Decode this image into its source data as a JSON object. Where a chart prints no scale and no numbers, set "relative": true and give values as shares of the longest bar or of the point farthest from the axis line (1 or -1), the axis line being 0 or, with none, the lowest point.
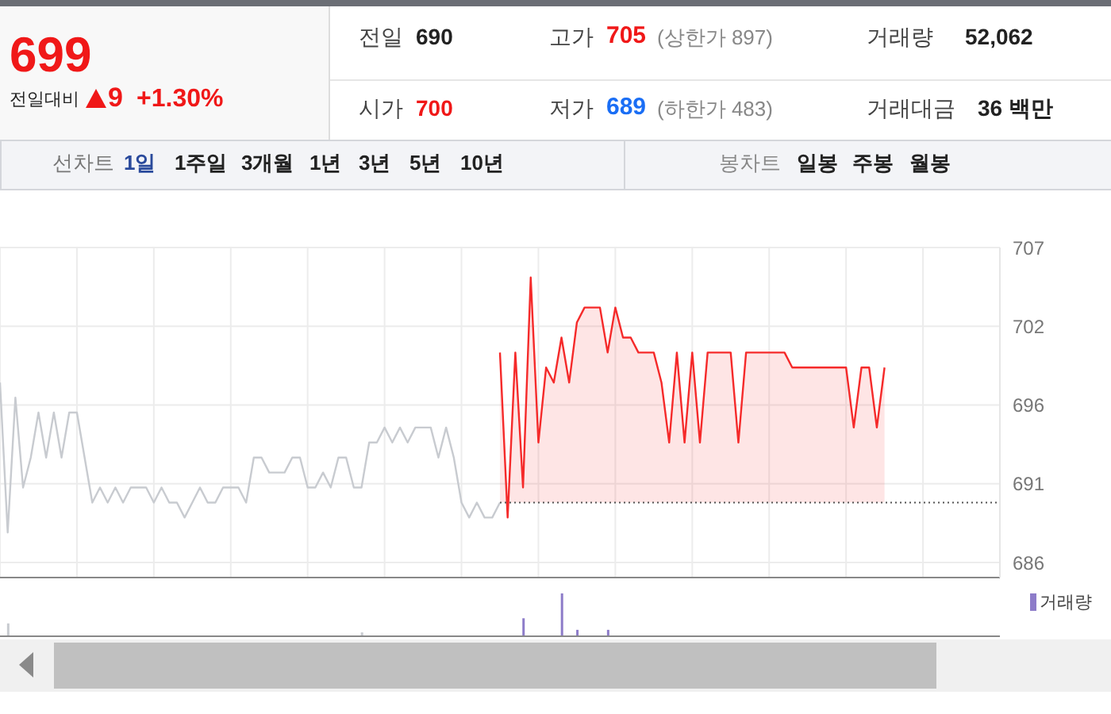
{
  "chart_data": [
    {
      "type": "other",
      "annotations": [
        "699",
        "전일대비",
        "9",
        "+1.30%",
        "전일",
        "690",
        "고가",
        "705",
        "(상한가 897)",
        "거래량",
        "52,062",
        "시가",
        "700",
        "저가",
        "689",
        "(하한가 483)",
        "거래대금",
        "36 백만",
        "선차트",
        "1일",
        "1주일",
        "3개월",
        "1년",
        "3년",
        "5년",
        "10년",
        "봉차트",
        "일봉",
        "주봉",
        "월봉"
      ]
    },
    {
      "type": "line",
      "categories": [
        null,
        null,
        null,
        null,
        null,
        null,
        null,
        null,
        null,
        null,
        null,
        null,
        null,
        null,
        null,
        null,
        null,
        null,
        null,
        null,
        null,
        null,
        null,
        null,
        null,
        null,
        null,
        null,
        null,
        null,
        null,
        null,
        null,
        null,
        null,
        null,
        null,
        null,
        null,
        null,
        null,
        null,
        null,
        null,
        null,
        null,
        null,
        null,
        null,
        null,
        null,
        null,
        null,
        null,
        null,
        null,
        null,
        null,
        null,
        null,
        null,
        null,
        null,
        null,
        null,
        null,
        null,
        null,
        null,
        null,
        null,
        null,
        null,
        null,
        null,
        null,
        null,
        null,
        null,
        null,
        null,
        null,
        null,
        null,
        null,
        null,
        null,
        null,
        null,
        null,
        null,
        null,
        null,
        null,
        null,
        null,
        null,
        null,
        null,
        null,
        null,
        null,
        null,
        null,
        null,
        null,
        null,
        null,
        null,
        null,
        null,
        null,
        null,
        null,
        null,
        null,
        null,
        null,
        null,
        null,
        null,
        null,
        null,
        null,
        null,
        null,
        null,
        null,
        null,
        null,
        null
      ],
      "series": [
        {
          "type": "line",
          "color": "#c8cbd0",
          "values": [
            698,
            688,
            697,
            691,
            693,
            696,
            693,
            696,
            693,
            696,
            696,
            693,
            690,
            691,
            690,
            691,
            690,
            691,
            691,
            691,
            690,
            691,
            690,
            690,
            689,
            690,
            691,
            690,
            690,
            691,
            691,
            691,
            690,
            693,
            693,
            692,
            692,
            692,
            693,
            693,
            691,
            691,
            692,
            691,
            693,
            693,
            691,
            691,
            694,
            694,
            695,
            694,
            695,
            694,
            695,
            695,
            695,
            693,
            695,
            693,
            690,
            689,
            690,
            689,
            689,
            690,
            null,
            null,
            null,
            null,
            null,
            null,
            null,
            null,
            null,
            null,
            null,
            null,
            null,
            null,
            null,
            null,
            null,
            null,
            null,
            null,
            null,
            null,
            null,
            null,
            null,
            null,
            null,
            null,
            null,
            null,
            null,
            null,
            null,
            null,
            null,
            null,
            null,
            null,
            null,
            null,
            null,
            null,
            null,
            null,
            null,
            null,
            null,
            null,
            null,
            null,
            null,
            null,
            null,
            null,
            null,
            null,
            null,
            null,
            null,
            null,
            null,
            null,
            null,
            null,
            null
          ]
        },
        {
          "type": "area",
          "color": "#f52a2a",
          "values": [
            null,
            null,
            null,
            null,
            null,
            null,
            null,
            null,
            null,
            null,
            null,
            null,
            null,
            null,
            null,
            null,
            null,
            null,
            null,
            null,
            null,
            null,
            null,
            null,
            null,
            null,
            null,
            null,
            null,
            null,
            null,
            null,
            null,
            null,
            null,
            null,
            null,
            null,
            null,
            null,
            null,
            null,
            null,
            null,
            null,
            null,
            null,
            null,
            null,
            null,
            null,
            null,
            null,
            null,
            null,
            null,
            null,
            null,
            null,
            null,
            null,
            null,
            null,
            null,
            null,
            700,
            689,
            700,
            691,
            705,
            694,
            699,
            698,
            701,
            698,
            702,
            703,
            703,
            703,
            700,
            703,
            701,
            701,
            700,
            700,
            700,
            698,
            694,
            700,
            694,
            700,
            694,
            700,
            700,
            700,
            700,
            694,
            700,
            700,
            700,
            700,
            700,
            700,
            699,
            699,
            699,
            699,
            699,
            699,
            699,
            699,
            695,
            699,
            699,
            695,
            699,
            null,
            null,
            null,
            null,
            null,
            null,
            null,
            null,
            null,
            null,
            null,
            null,
            null,
            null,
            null
          ]
        }
      ],
      "ylim": [
        685,
        707
      ],
      "yticks": [
        {
          "value": 686,
          "label": "686"
        },
        {
          "value": 691.25,
          "label": "691"
        },
        {
          "value": 696.5,
          "label": "696"
        },
        {
          "value": 701.75,
          "label": "702"
        },
        {
          "value": 707,
          "label": "707"
        }
      ],
      "ref_lines": [
        {
          "axis": "y",
          "value": 690,
          "line_style": "dotted",
          "color": "#555555"
        }
      ],
      "grid": true,
      "tick_labels": "y"
    },
    {
      "type": "bar",
      "relative": true,
      "stacked": true,
      "legend": "top right",
      "tick_labels": false,
      "categories": [
        null,
        null,
        null,
        null,
        null,
        null,
        null,
        null,
        null,
        null,
        null,
        null,
        null,
        null,
        null,
        null,
        null,
        null,
        null,
        null,
        null,
        null,
        null,
        null,
        null,
        null,
        null,
        null,
        null,
        null,
        null,
        null,
        null,
        null,
        null,
        null,
        null,
        null,
        null,
        null,
        null,
        null,
        null,
        null,
        null,
        null,
        null,
        null,
        null,
        null,
        null,
        null,
        null,
        null,
        null,
        null,
        null,
        null,
        null,
        null,
        null,
        null,
        null,
        null,
        null,
        null,
        null,
        null,
        null,
        null,
        null,
        null,
        null,
        null,
        null,
        null,
        null,
        null,
        null,
        null,
        null,
        null,
        null,
        null,
        null,
        null,
        null,
        null,
        null,
        null,
        null,
        null,
        null,
        null,
        null,
        null,
        null,
        null,
        null,
        null,
        null,
        null,
        null,
        null,
        null,
        null,
        null,
        null,
        null,
        null,
        null,
        null,
        null,
        null,
        null,
        null,
        null,
        null,
        null,
        null,
        null,
        null,
        null,
        null,
        null,
        null,
        null,
        null,
        null,
        null,
        null
      ],
      "series": [
        {
          "color": "#c8cbd0",
          "values": [
            null,
            0.3,
            null,
            null,
            null,
            null,
            null,
            null,
            null,
            null,
            null,
            null,
            null,
            null,
            null,
            null,
            null,
            null,
            null,
            null,
            null,
            null,
            null,
            null,
            null,
            null,
            null,
            null,
            null,
            null,
            null,
            null,
            null,
            null,
            null,
            null,
            null,
            null,
            null,
            null,
            null,
            null,
            null,
            null,
            null,
            null,
            null,
            0.09,
            null,
            null,
            null,
            null,
            null,
            null,
            null,
            null,
            null,
            null,
            null,
            null,
            null,
            null,
            null,
            null,
            null,
            null,
            null,
            null,
            null,
            null,
            null,
            null,
            null,
            null,
            null,
            null,
            null,
            null,
            null,
            null,
            null,
            null,
            null,
            null,
            null,
            null,
            null,
            null,
            null,
            null,
            null,
            null,
            null,
            null,
            null,
            null,
            null,
            null,
            null,
            null,
            null,
            null,
            null,
            null,
            null,
            null,
            null,
            null,
            null,
            null,
            null,
            null,
            null,
            null,
            null,
            null,
            null,
            null,
            null,
            null,
            null,
            null,
            null,
            null,
            null,
            null,
            null,
            null,
            null,
            null,
            null
          ]
        },
        {
          "name": "거래량",
          "color": "#8d7cc9",
          "values": [
            null,
            null,
            null,
            null,
            null,
            null,
            null,
            null,
            null,
            null,
            null,
            null,
            null,
            null,
            null,
            null,
            null,
            null,
            null,
            null,
            null,
            null,
            null,
            null,
            null,
            null,
            null,
            null,
            null,
            null,
            null,
            null,
            null,
            null,
            null,
            null,
            null,
            null,
            null,
            null,
            null,
            null,
            null,
            null,
            null,
            null,
            null,
            null,
            null,
            null,
            null,
            null,
            null,
            null,
            null,
            null,
            null,
            null,
            null,
            null,
            null,
            null,
            null,
            null,
            null,
            null,
            null,
            null,
            0.42,
            null,
            null,
            null,
            null,
            1,
            null,
            0.15,
            null,
            null,
            null,
            0.15,
            null,
            null,
            null,
            null,
            null,
            null,
            null,
            null,
            null,
            null,
            null,
            null,
            null,
            null,
            null,
            null,
            null,
            null,
            null,
            null,
            null,
            null,
            null,
            null,
            null,
            null,
            null,
            null,
            null,
            null,
            null,
            null,
            null,
            null,
            null,
            null,
            null,
            null,
            null,
            null,
            null,
            null,
            null,
            null,
            null,
            null,
            null,
            null,
            null,
            null,
            null
          ]
        }
      ]
    }
  ]
}
